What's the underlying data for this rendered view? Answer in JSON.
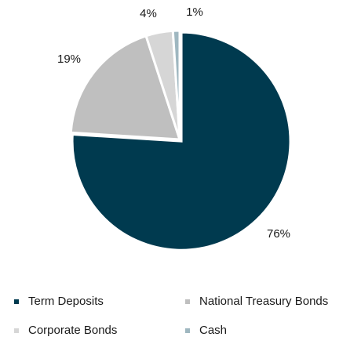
{
  "chart_data": {
    "type": "pie",
    "categories": [
      "Term Deposits",
      "National Treasury Bonds",
      "Corporate Bonds",
      "Cash"
    ],
    "values": [
      76,
      19,
      4,
      1
    ],
    "value_labels": [
      "76%",
      "19%",
      "4%",
      "1%"
    ],
    "colors": [
      "#003a4f",
      "#bfbfbf",
      "#d6d6d6",
      "#9fb7c0"
    ],
    "start_angle_deg": 0,
    "direction": "clockwise",
    "legend_position": "bottom",
    "exploded_slice": "Term Deposits"
  }
}
